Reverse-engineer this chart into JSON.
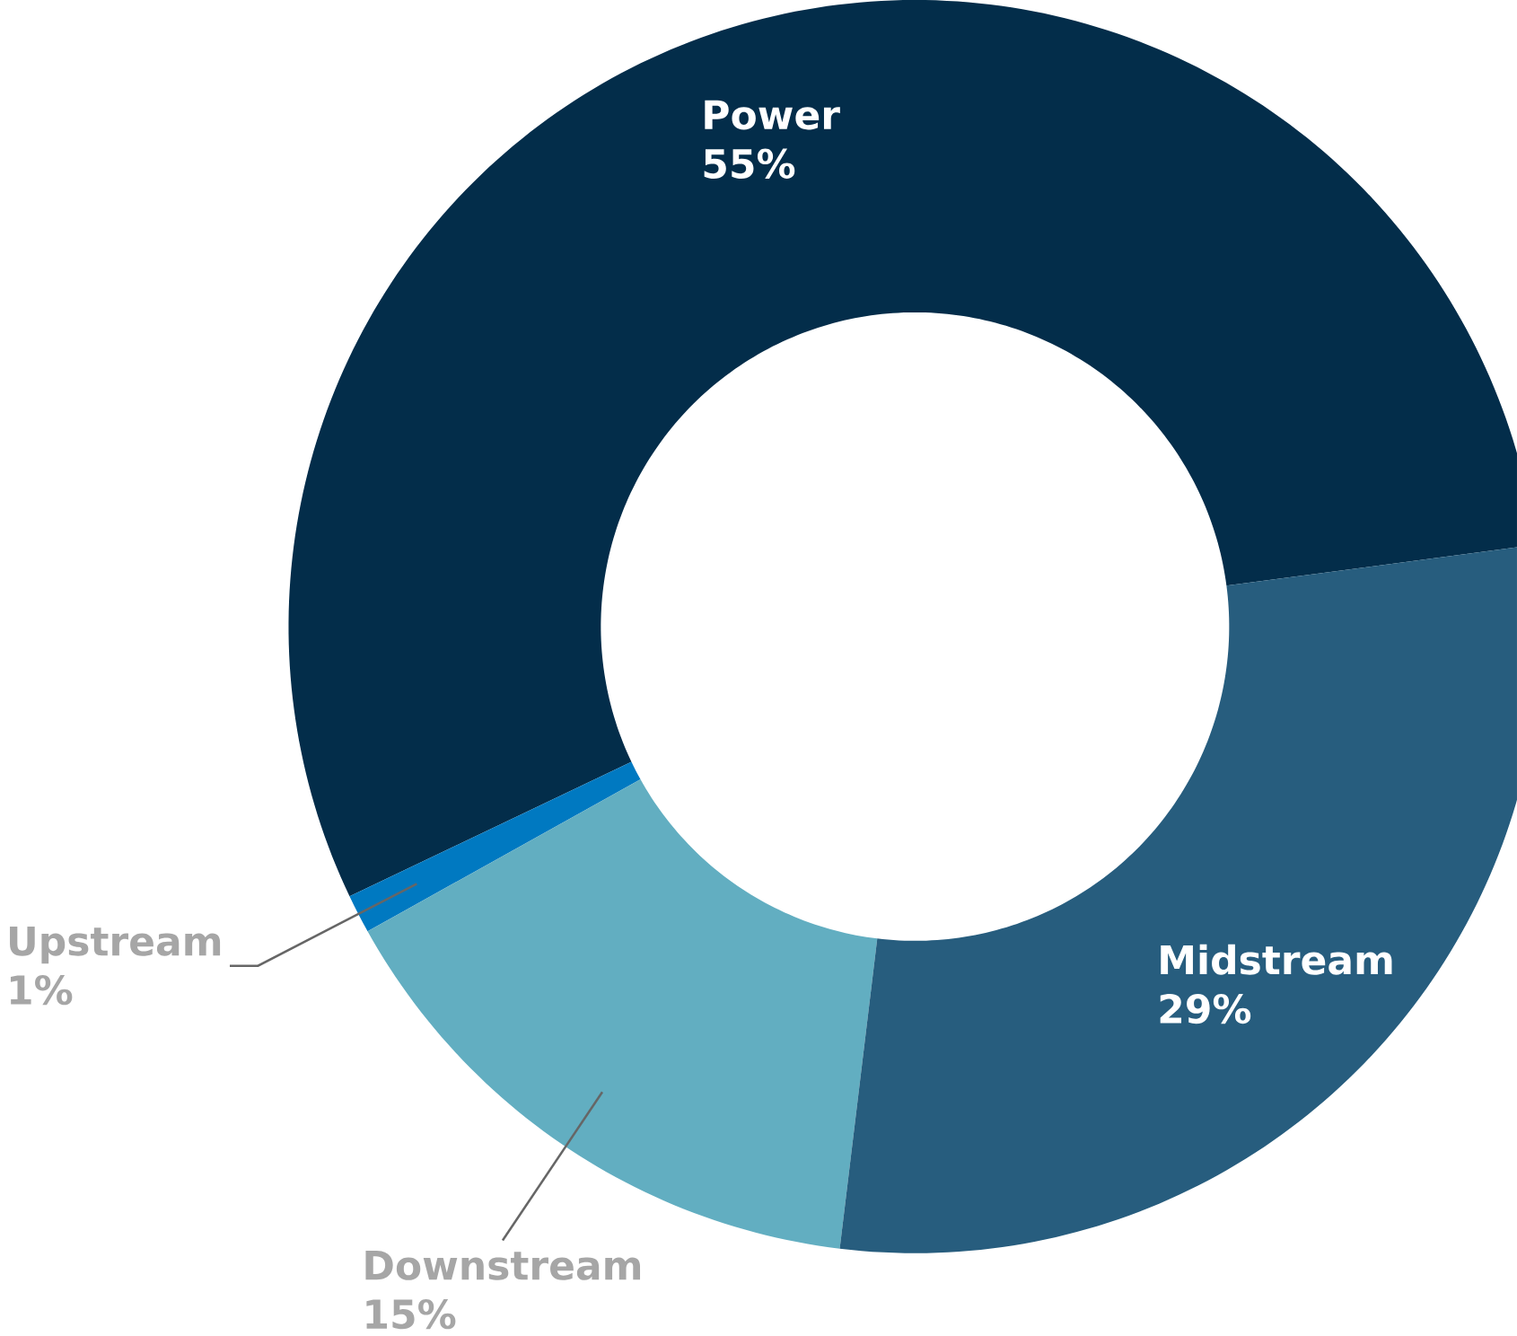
{
  "chart_data": {
    "type": "donut",
    "categories": [
      "Power",
      "Upstream",
      "Downstream",
      "Midstream"
    ],
    "values": [
      55,
      1,
      15,
      29
    ],
    "value_labels": [
      "55%",
      "1%",
      "15%",
      "29%"
    ],
    "colors": [
      "#032d4a",
      "#0079c1",
      "#62aec1",
      "#275d7e"
    ]
  }
}
